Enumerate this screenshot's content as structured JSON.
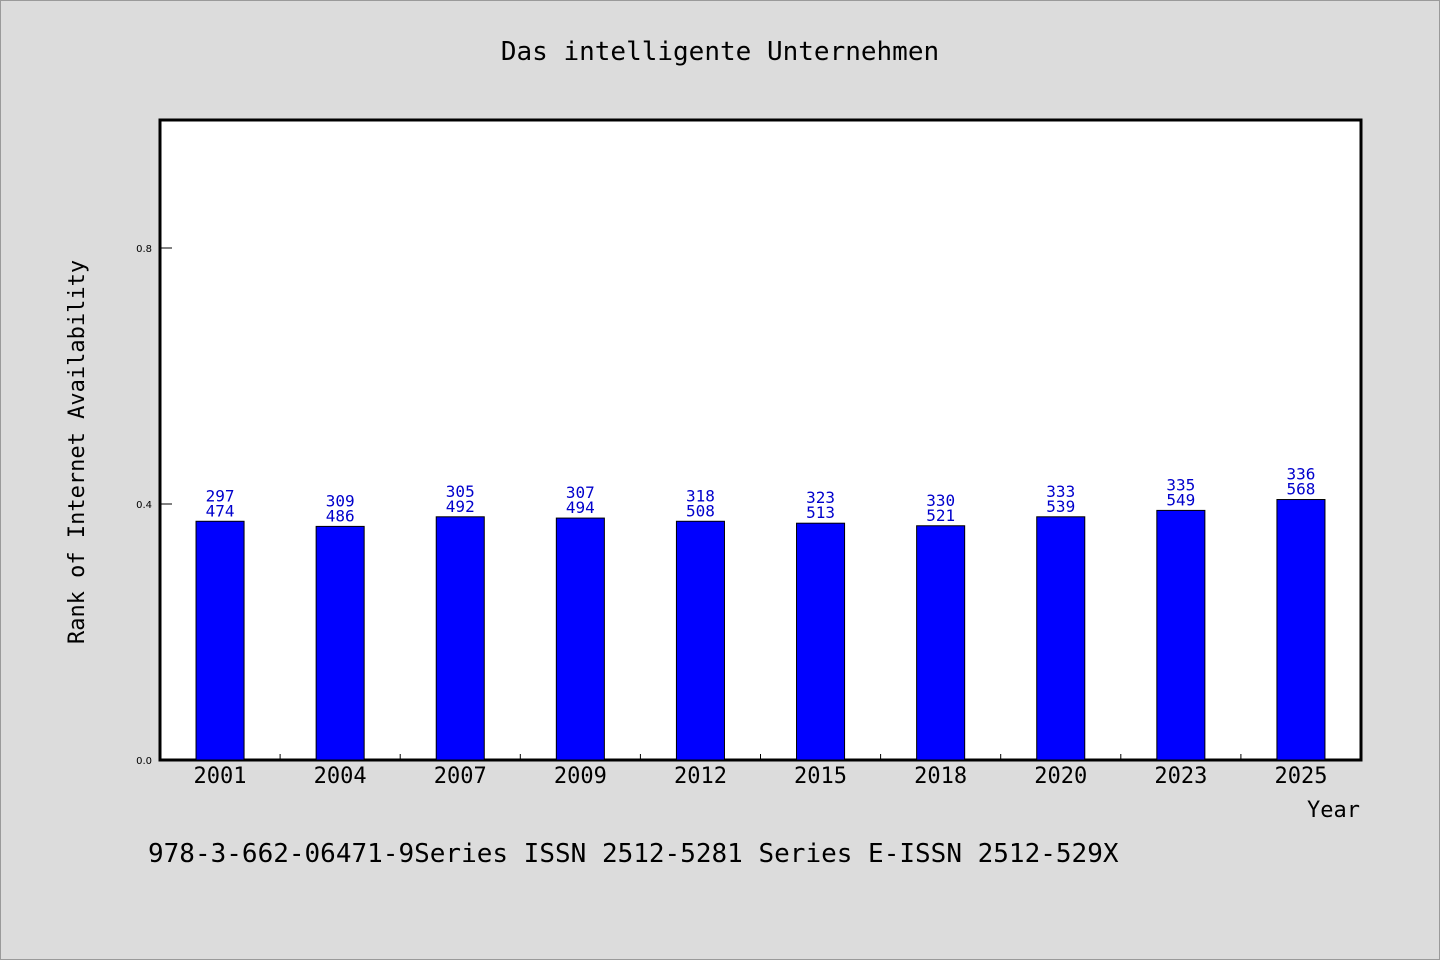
{
  "chart_data": {
    "type": "bar",
    "title": "Das intelligente Unternehmen",
    "xlabel": "Year",
    "ylabel": "Rank of Internet Availability",
    "categories": [
      "2001",
      "2004",
      "2007",
      "2009",
      "2012",
      "2015",
      "2018",
      "2020",
      "2023",
      "2025"
    ],
    "values": [
      0.373,
      0.365,
      0.38,
      0.378,
      0.373,
      0.37,
      0.366,
      0.38,
      0.39,
      0.407
    ],
    "annotations_top": [
      "297",
      "309",
      "305",
      "307",
      "318",
      "323",
      "330",
      "333",
      "335",
      "336"
    ],
    "annotations_bottom": [
      "474",
      "486",
      "492",
      "494",
      "508",
      "513",
      "521",
      "539",
      "549",
      "568"
    ],
    "ylim": [
      0,
      1.0
    ],
    "yticks": [
      0.0,
      0.4,
      0.8
    ],
    "ytick_labels": [
      "0.0",
      "0.4",
      "0.8"
    ],
    "grid": false,
    "bar_color": "#0000ff",
    "label_color": "#0000cc"
  },
  "footer": {
    "text": "978-3-662-06471-9Series ISSN 2512-5281 Series E-ISSN 2512-529X"
  },
  "colors": {
    "background": "#dcdcdc",
    "plot_background": "#ffffff"
  }
}
